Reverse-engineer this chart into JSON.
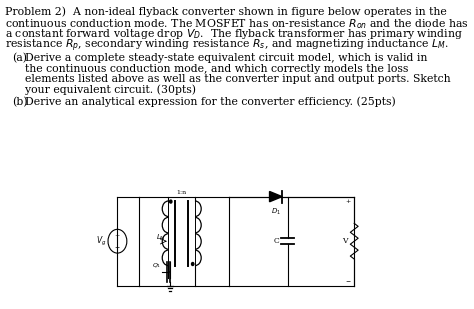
{
  "title_line1": "Problem 2)  A non-ideal flyback converter shown in figure below operates in the",
  "title_line2": "continuous conduction mode. The MOSFET has on-resistance $R_{on}$ and the diode has",
  "title_line3": "a constant forward voltage drop $V_D$.  The flyback transformer has primary winding",
  "title_line4": "resistance $R_p$, secondary winding resistance $R_s$, and magnetizing inductance $L_M$.",
  "part_a_label": "(a)",
  "part_a1": "Derive a complete steady-state equivalent circuit model, which is valid in",
  "part_a2": "the continuous conduction mode, and which correctly models the loss",
  "part_a3": "elements listed above as well as the converter input and output ports. Sketch",
  "part_a4": "your equivalent circuit. (30pts)",
  "part_b_label": "(b)",
  "part_b1": "Derive an analytical expression for the converter efficiency. (25pts)",
  "background": "#ffffff",
  "text_color": "#000000",
  "fs_main": 7.8,
  "fs_circuit": 6.0,
  "fig_width": 4.74,
  "fig_height": 3.09,
  "dpi": 100
}
